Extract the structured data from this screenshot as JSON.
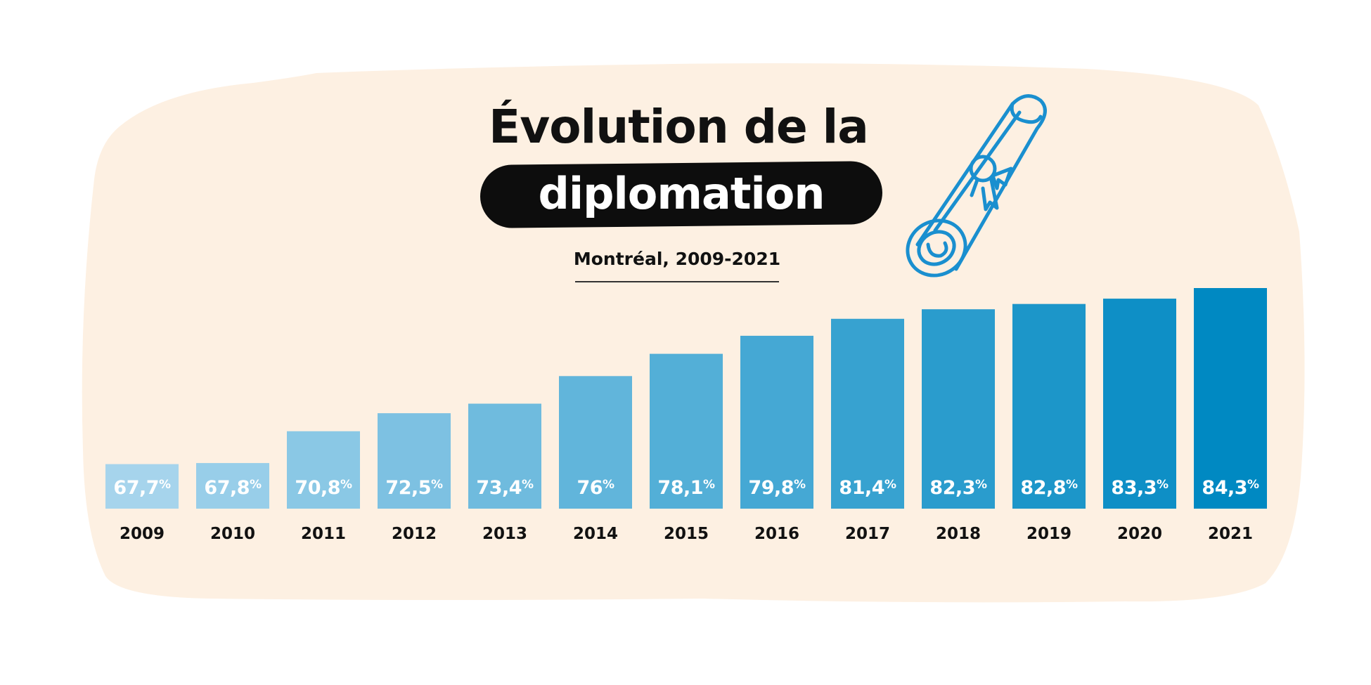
{
  "title": {
    "line1": "Évolution de la",
    "line2": "diplomation"
  },
  "subtitle": "Montréal, 2009-2021",
  "icons": {
    "decoration": "diploma-scroll-icon"
  },
  "colors": {
    "background": "#fdf0e2",
    "title_pill": "#0d0d0d",
    "bar_start": "#a6d4ec",
    "bar_end": "#0089c2",
    "icon_stroke": "#1a8fcf"
  },
  "chart_data": {
    "type": "bar",
    "title": "Évolution de la diplomation",
    "subtitle": "Montréal, 2009-2021",
    "categories": [
      "2009",
      "2010",
      "2011",
      "2012",
      "2013",
      "2014",
      "2015",
      "2016",
      "2017",
      "2018",
      "2019",
      "2020",
      "2021"
    ],
    "values": [
      67.7,
      67.8,
      70.8,
      72.5,
      73.4,
      76,
      78.1,
      79.8,
      81.4,
      82.3,
      82.8,
      83.3,
      84.3
    ],
    "value_labels": [
      "67,7",
      "67,8",
      "70,8",
      "72,5",
      "73,4",
      "76",
      "78,1",
      "79,8",
      "81,4",
      "82,3",
      "82,8",
      "83,3",
      "84,3"
    ],
    "unit": "%",
    "xlabel": "",
    "ylabel": "",
    "ylim": [
      63.5,
      84.3
    ],
    "grid": false,
    "legend": "none"
  }
}
